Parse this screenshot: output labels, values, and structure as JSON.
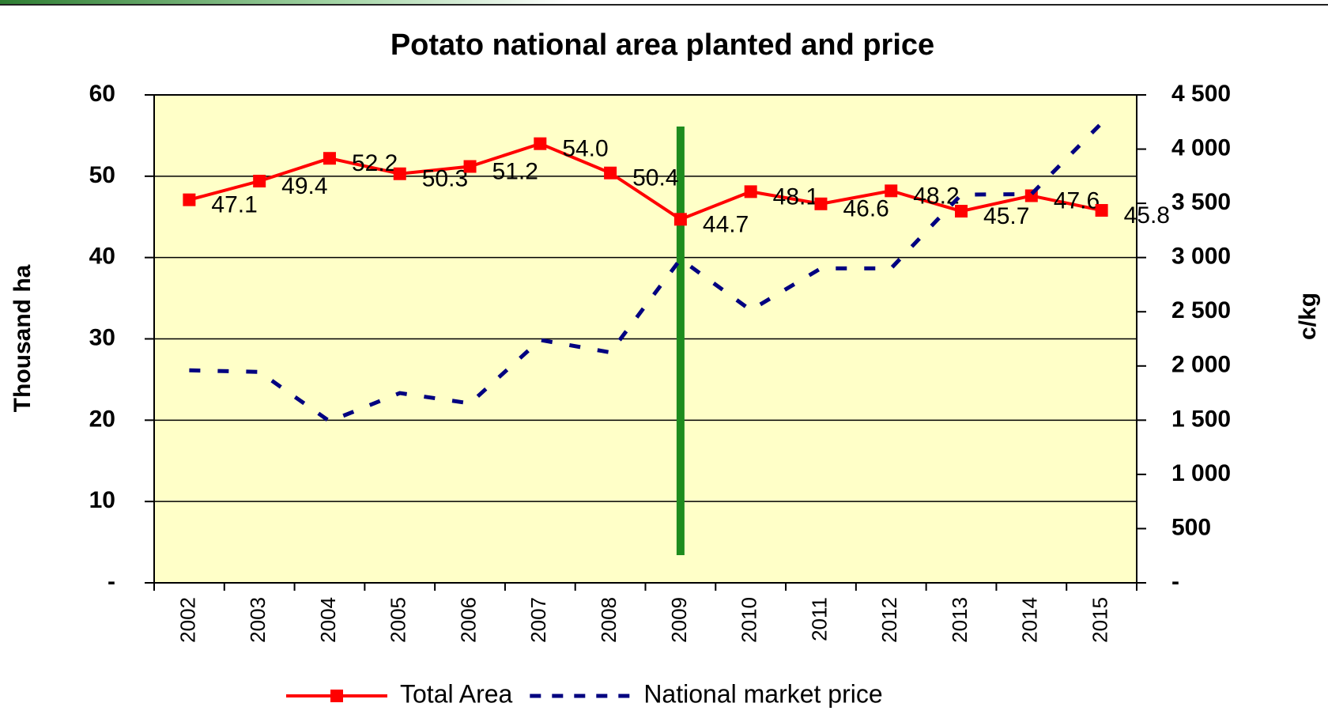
{
  "chart_data": {
    "type": "line",
    "title": "Potato national area planted and price",
    "y_label": "Thousand ha",
    "y2_label": "c/kg",
    "categories": [
      "2002",
      "2003",
      "2004",
      "2005",
      "2006",
      "2007",
      "2008",
      "2009",
      "2010",
      "2011",
      "2012",
      "2013",
      "2014",
      "2015"
    ],
    "series": [
      {
        "name": "Total Area",
        "color": "#ff0000",
        "axis": "y",
        "values": [
          47.1,
          49.4,
          52.2,
          50.3,
          51.2,
          54,
          50.4,
          44.7,
          48.1,
          46.6,
          48.2,
          45.7,
          47.6,
          45.8
        ],
        "value_labels": [
          "47.1",
          "49.4",
          "52.2",
          "50.3",
          "51.2",
          "54.0",
          "50.4",
          "44.7",
          "48.1",
          "46.6",
          "48.2",
          "45.7",
          "47.6",
          "45.8"
        ]
      },
      {
        "name": "National market price",
        "color": "#000080",
        "axis": "y2",
        "values": [
          1960,
          1945,
          1490,
          1750,
          1655,
          2240,
          2125,
          2985,
          2515,
          2900,
          2900,
          3580,
          3585,
          4240
        ]
      }
    ],
    "ylim": [
      0,
      60
    ],
    "yticks": [
      {
        "value": 0,
        "label": "-"
      },
      10,
      20,
      30,
      40,
      50,
      60
    ],
    "y2lim": [
      0,
      4500
    ],
    "y2ticks": [
      {
        "value": 0,
        "label": "-"
      },
      500,
      {
        "value": 1000,
        "label": "1 000"
      },
      {
        "value": 1500,
        "label": "1 500"
      },
      {
        "value": 2000,
        "label": "2 000"
      },
      {
        "value": 2500,
        "label": "2 500"
      },
      {
        "value": 3000,
        "label": "3 000"
      },
      {
        "value": 3500,
        "label": "3 500"
      },
      {
        "value": 4000,
        "label": "4 000"
      },
      {
        "value": 4500,
        "label": "4 500"
      }
    ],
    "grid": true,
    "legend": "bottom"
  }
}
